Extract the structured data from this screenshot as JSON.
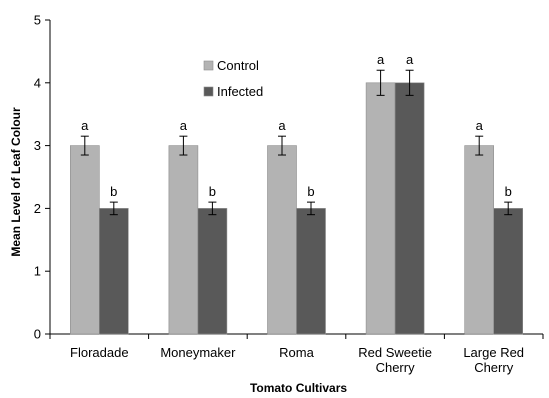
{
  "chart_data": {
    "type": "bar",
    "title": "",
    "xlabel": "Tomato Cultivars",
    "ylabel": "Mean  Level of Leaf Colour",
    "ylim": [
      0,
      5
    ],
    "yticks": [
      "0",
      "1",
      "2",
      "3",
      "4",
      "5"
    ],
    "categories": [
      [
        "Floradade"
      ],
      [
        "Moneymaker"
      ],
      [
        "Roma"
      ],
      [
        "Red Sweetie",
        "Cherry"
      ],
      [
        "Large Red",
        "Cherry"
      ]
    ],
    "series": [
      {
        "name": "Control",
        "color": "#b3b3b3",
        "values": [
          3,
          3,
          3,
          4,
          3
        ],
        "errors": [
          0.15,
          0.15,
          0.15,
          0.2,
          0.15
        ],
        "sig": [
          "a",
          "a",
          "a",
          "a",
          "a"
        ]
      },
      {
        "name": "Infected",
        "color": "#595959",
        "values": [
          2,
          2,
          2,
          4,
          2
        ],
        "errors": [
          0.1,
          0.1,
          0.1,
          0.2,
          0.1
        ],
        "sig": [
          "b",
          "b",
          "b",
          "a",
          "b"
        ]
      }
    ],
    "grid": false,
    "legend_position": "top-left-inside"
  }
}
